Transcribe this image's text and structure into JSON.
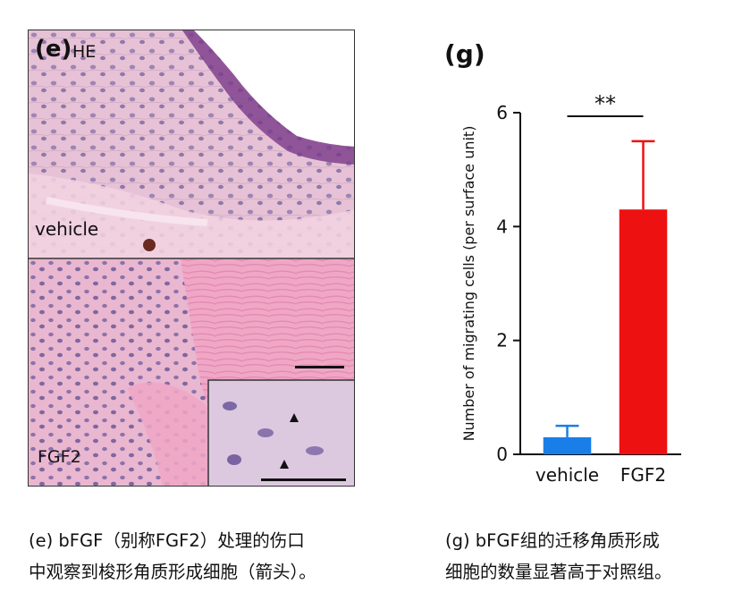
{
  "figure": {
    "panel_e": {
      "label": "(e)",
      "stain": "HE",
      "top_label": "vehicle",
      "bottom_label": "FGF2"
    },
    "panel_g": {
      "label": "(g)"
    }
  },
  "chart_data": {
    "type": "bar",
    "categories": [
      "vehicle",
      "FGF2"
    ],
    "values": [
      0.3,
      4.3
    ],
    "errors": [
      0.2,
      1.2
    ],
    "colors": [
      "#1a7ee8",
      "#ee1111"
    ],
    "title": "",
    "xlabel": "",
    "ylabel": "Number of migrating cells (per surface unit)",
    "ylim": [
      0,
      6
    ],
    "yticks": [
      0,
      2,
      4,
      6
    ],
    "significance": "**",
    "grid": false
  },
  "captions": {
    "e": [
      "(e) bFGF（别称FGF2）处理的伤口",
      "中观察到梭形角质形成细胞（箭头）。"
    ],
    "g": [
      "(g) bFGF组的迁移角质形成",
      "细胞的数量显著高于对照组。"
    ]
  }
}
